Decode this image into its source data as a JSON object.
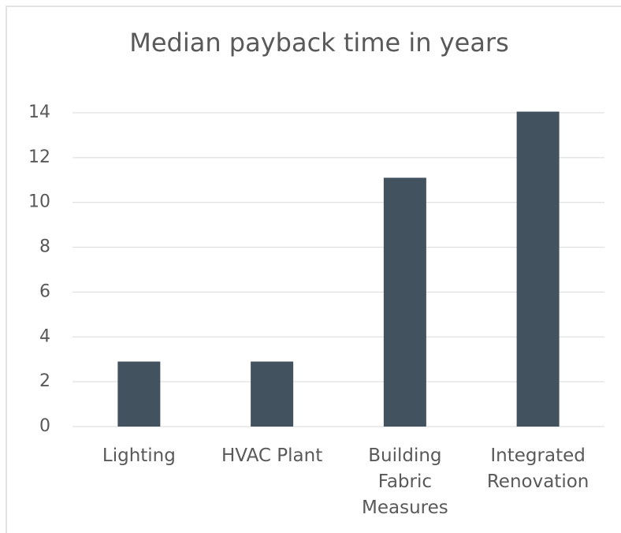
{
  "chart_data": {
    "type": "bar",
    "title": "Median payback time in years",
    "categories": [
      "Lighting",
      "HVAC Plant",
      "Building Fabric Measures",
      "Integrated Renovation"
    ],
    "values": [
      2.9,
      2.9,
      11.1,
      14.05
    ],
    "color": "#42535f",
    "ylim": [
      0,
      14
    ],
    "yticks": [
      0,
      2,
      4,
      6,
      8,
      10,
      12,
      14
    ],
    "grid": true
  }
}
